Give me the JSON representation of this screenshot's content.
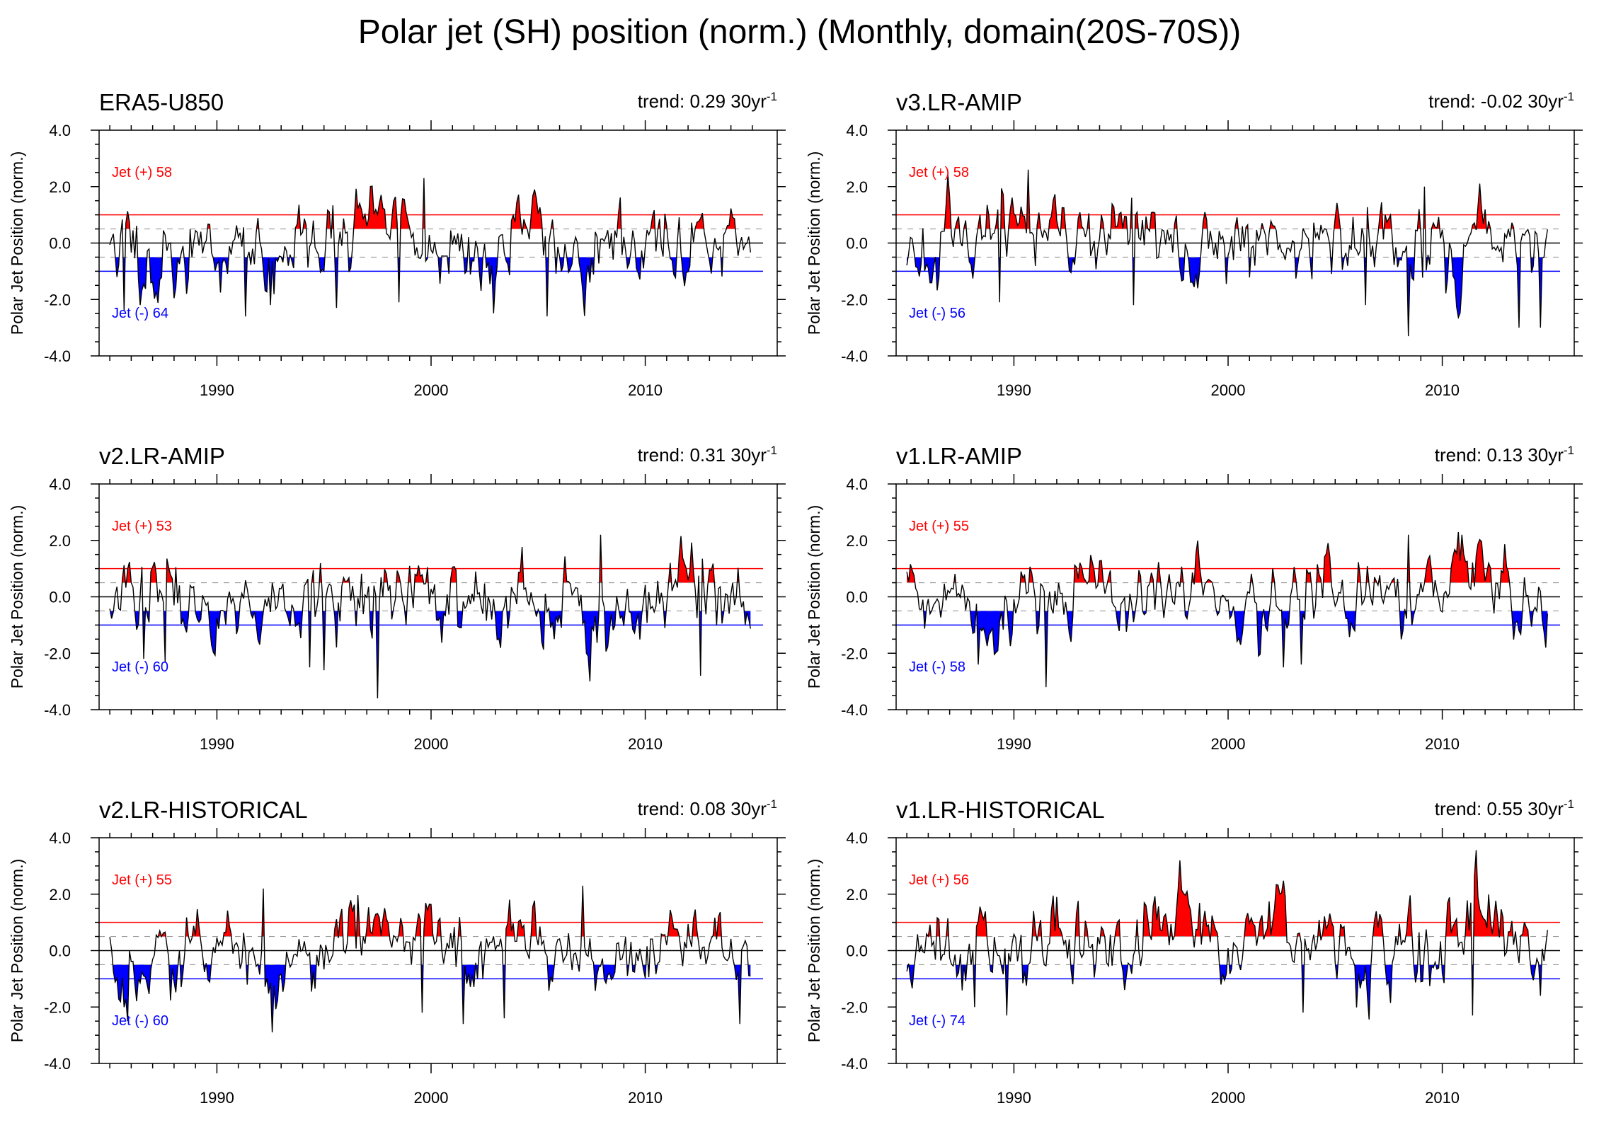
{
  "figure": {
    "title": "Polar jet (SH) position (norm.) (Monthly, domain(20S-70S))"
  },
  "colors": {
    "positive": "#ff0000",
    "negative": "#0000ff",
    "line": "#000000",
    "axis": "#000000",
    "dashed": "#999999"
  },
  "chart_data": [
    {
      "type": "area",
      "panel_title": "ERA5-U850",
      "trend_label": "trend: 0.29 30yr",
      "trend_exp": "-1",
      "ylabel": "Polar Jet Position (norm.)",
      "xlim": [
        1984.5,
        2015.5
      ],
      "ylim": [
        -4.0,
        4.0
      ],
      "yticks": [
        -4.0,
        -2.0,
        0.0,
        2.0,
        4.0
      ],
      "ytick_labels": [
        "-4.0",
        "-2.0",
        "0.0",
        "2.0",
        "4.0"
      ],
      "xticks": [
        1990,
        2000,
        2010
      ],
      "xtick_labels": [
        "1990",
        "2000",
        "2010"
      ],
      "thresholds": {
        "upper": 1.0,
        "lower": -1.0,
        "upper_dash": 0.5,
        "lower_dash": -0.5,
        "zero": 0.0
      },
      "pos_label": "Jet (+) 58",
      "neg_label": "Jet (-) 64",
      "series": {
        "start_year": 1985,
        "end_year": 2015,
        "seed": 11,
        "trend": 0.29,
        "events": [
          [
            1997.9,
            1.4,
            1.2
          ],
          [
            2001.0,
            1.0,
            0.6
          ],
          [
            1992.0,
            -0.9,
            0.8
          ],
          [
            1987.3,
            -0.7,
            0.5
          ]
        ],
        "extremes": [
          [
            1985.7,
            -2.4
          ],
          [
            1986.4,
            -2.2
          ],
          [
            1991.3,
            -2.6
          ],
          [
            1992.5,
            -2.2
          ],
          [
            1995.6,
            -2.3
          ],
          [
            2005.4,
            -2.6
          ],
          [
            1999.7,
            2.3
          ],
          [
            1998.5,
            -2.1
          ]
        ]
      }
    },
    {
      "type": "area",
      "panel_title": "v3.LR-AMIP",
      "trend_label": "trend: -0.02 30yr",
      "trend_exp": "-1",
      "ylabel": "Polar Jet Position (norm.)",
      "xlim": [
        1984.5,
        2015.5
      ],
      "ylim": [
        -4.0,
        4.0
      ],
      "yticks": [
        -4.0,
        -2.0,
        0.0,
        2.0,
        4.0
      ],
      "ytick_labels": [
        "-4.0",
        "-2.0",
        "0.0",
        "2.0",
        "4.0"
      ],
      "xticks": [
        1990,
        2000,
        2010
      ],
      "xtick_labels": [
        "1990",
        "2000",
        "2010"
      ],
      "thresholds": {
        "upper": 1.0,
        "lower": -1.0,
        "upper_dash": 0.5,
        "lower_dash": -0.5,
        "zero": 0.0
      },
      "pos_label": "Jet (+) 58",
      "neg_label": "Jet (-) 56",
      "series": {
        "start_year": 1985,
        "end_year": 2015,
        "seed": 23,
        "trend": -0.02,
        "events": [
          [
            2009.3,
            0.6,
            0.8
          ],
          [
            2008.2,
            -0.7,
            0.5
          ]
        ],
        "extremes": [
          [
            1990.7,
            2.6
          ],
          [
            1989.3,
            -2.1
          ],
          [
            2008.4,
            -3.3
          ],
          [
            2013.6,
            -3.0
          ],
          [
            2014.6,
            -3.0
          ],
          [
            1995.6,
            -2.2
          ],
          [
            2006.4,
            -2.2
          ],
          [
            2009.2,
            2.0
          ]
        ]
      }
    },
    {
      "type": "area",
      "panel_title": "v2.LR-AMIP",
      "trend_label": "trend: 0.31 30yr",
      "trend_exp": "-1",
      "ylabel": "Polar Jet Position (norm.)",
      "xlim": [
        1984.5,
        2015.5
      ],
      "ylim": [
        -4.0,
        4.0
      ],
      "yticks": [
        -4.0,
        -2.0,
        0.0,
        2.0,
        4.0
      ],
      "ytick_labels": [
        "-4.0",
        "-2.0",
        "0.0",
        "2.0",
        "4.0"
      ],
      "xticks": [
        1990,
        2000,
        2010
      ],
      "xtick_labels": [
        "1990",
        "2000",
        "2010"
      ],
      "thresholds": {
        "upper": 1.0,
        "lower": -1.0,
        "upper_dash": 0.5,
        "lower_dash": -0.5,
        "zero": 0.0
      },
      "pos_label": "Jet (+) 53",
      "neg_label": "Jet (-) 60",
      "series": {
        "start_year": 1985,
        "end_year": 2015,
        "seed": 37,
        "trend": 0.31,
        "events": [
          [
            2006.5,
            0.9,
            0.8
          ],
          [
            1996.5,
            -0.5,
            1.0
          ]
        ],
        "extremes": [
          [
            1997.5,
            -3.6
          ],
          [
            1995.0,
            -2.6
          ],
          [
            2007.4,
            -3.0
          ],
          [
            2012.6,
            -2.8
          ],
          [
            2007.9,
            2.2
          ],
          [
            1986.6,
            -2.2
          ],
          [
            1994.3,
            -2.5
          ],
          [
            1987.6,
            -2.3
          ]
        ]
      }
    },
    {
      "type": "area",
      "panel_title": "v1.LR-AMIP",
      "trend_label": "trend: 0.13 30yr",
      "trend_exp": "-1",
      "ylabel": "Polar Jet Position (norm.)",
      "xlim": [
        1984.5,
        2015.5
      ],
      "ylim": [
        -4.0,
        4.0
      ],
      "yticks": [
        -4.0,
        -2.0,
        0.0,
        2.0,
        4.0
      ],
      "ytick_labels": [
        "-4.0",
        "-2.0",
        "0.0",
        "2.0",
        "4.0"
      ],
      "xticks": [
        1990,
        2000,
        2010
      ],
      "xtick_labels": [
        "1990",
        "2000",
        "2010"
      ],
      "thresholds": {
        "upper": 1.0,
        "lower": -1.0,
        "upper_dash": 0.5,
        "lower_dash": -0.5,
        "zero": 0.0
      },
      "pos_label": "Jet (+) 55",
      "neg_label": "Jet (-) 58",
      "series": {
        "start_year": 1985,
        "end_year": 2015,
        "seed": 41,
        "trend": 0.13,
        "events": [
          [
            2006.0,
            0.9,
            1.2
          ],
          [
            2010.8,
            0.9,
            0.6
          ],
          [
            2002.8,
            -1.0,
            0.6
          ]
        ],
        "extremes": [
          [
            1991.5,
            -3.2
          ],
          [
            2010.9,
            2.2
          ],
          [
            2002.6,
            -2.5
          ],
          [
            2003.4,
            -2.4
          ],
          [
            2001.4,
            -2.1
          ],
          [
            1988.3,
            -2.4
          ],
          [
            2008.4,
            2.2
          ],
          [
            2014.8,
            -1.8
          ]
        ]
      }
    },
    {
      "type": "area",
      "panel_title": "v2.LR-HISTORICAL",
      "trend_label": "trend: 0.08 30yr",
      "trend_exp": "-1",
      "ylabel": "Polar Jet Position (norm.)",
      "xlim": [
        1984.5,
        2015.5
      ],
      "ylim": [
        -4.0,
        4.0
      ],
      "yticks": [
        -4.0,
        -2.0,
        0.0,
        2.0,
        4.0
      ],
      "ytick_labels": [
        "-4.0",
        "-2.0",
        "0.0",
        "2.0",
        "4.0"
      ],
      "xticks": [
        1990,
        2000,
        2010
      ],
      "xtick_labels": [
        "1990",
        "2000",
        "2010"
      ],
      "thresholds": {
        "upper": 1.0,
        "lower": -1.0,
        "upper_dash": 0.5,
        "lower_dash": -0.5,
        "zero": 0.0
      },
      "pos_label": "Jet (+) 55",
      "neg_label": "Jet (-) 60",
      "series": {
        "start_year": 1985,
        "end_year": 2015,
        "seed": 53,
        "trend": 0.08,
        "events": [
          [
            2013.2,
            0.9,
            0.6
          ],
          [
            1985.5,
            -0.9,
            0.5
          ]
        ],
        "extremes": [
          [
            1992.2,
            2.2
          ],
          [
            1992.6,
            -2.9
          ],
          [
            2001.5,
            -2.6
          ],
          [
            2014.4,
            -2.6
          ],
          [
            2007.1,
            2.3
          ],
          [
            2003.4,
            -2.4
          ],
          [
            1985.8,
            -2.5
          ],
          [
            1999.6,
            -2.2
          ]
        ]
      }
    },
    {
      "type": "area",
      "panel_title": "v1.LR-HISTORICAL",
      "trend_label": "trend: 0.55 30yr",
      "trend_exp": "-1",
      "ylabel": "Polar Jet Position (norm.)",
      "xlim": [
        1984.5,
        2015.5
      ],
      "ylim": [
        -4.0,
        4.0
      ],
      "yticks": [
        -4.0,
        -2.0,
        0.0,
        2.0,
        4.0
      ],
      "ytick_labels": [
        "-4.0",
        "-2.0",
        "0.0",
        "2.0",
        "4.0"
      ],
      "xticks": [
        1990,
        2000,
        2010
      ],
      "xtick_labels": [
        "1990",
        "2000",
        "2010"
      ],
      "thresholds": {
        "upper": 1.0,
        "lower": -1.0,
        "upper_dash": 0.5,
        "lower_dash": -0.5,
        "zero": 0.0
      },
      "pos_label": "Jet (+) 56",
      "neg_label": "Jet (-) 74",
      "series": {
        "start_year": 1985,
        "end_year": 2015,
        "seed": 67,
        "trend": 0.55,
        "events": [
          [
            1988.0,
            -0.9,
            0.9
          ],
          [
            1991.5,
            -0.7,
            0.6
          ]
        ],
        "extremes": [
          [
            1989.7,
            -2.3
          ],
          [
            1988.2,
            -2.0
          ],
          [
            1992.0,
            1.9
          ],
          [
            2002.4,
            2.0
          ],
          [
            2003.5,
            -2.2
          ],
          [
            2011.4,
            -2.3
          ],
          [
            2014.6,
            -1.6
          ],
          [
            1996.2,
            1.6
          ]
        ]
      }
    }
  ]
}
